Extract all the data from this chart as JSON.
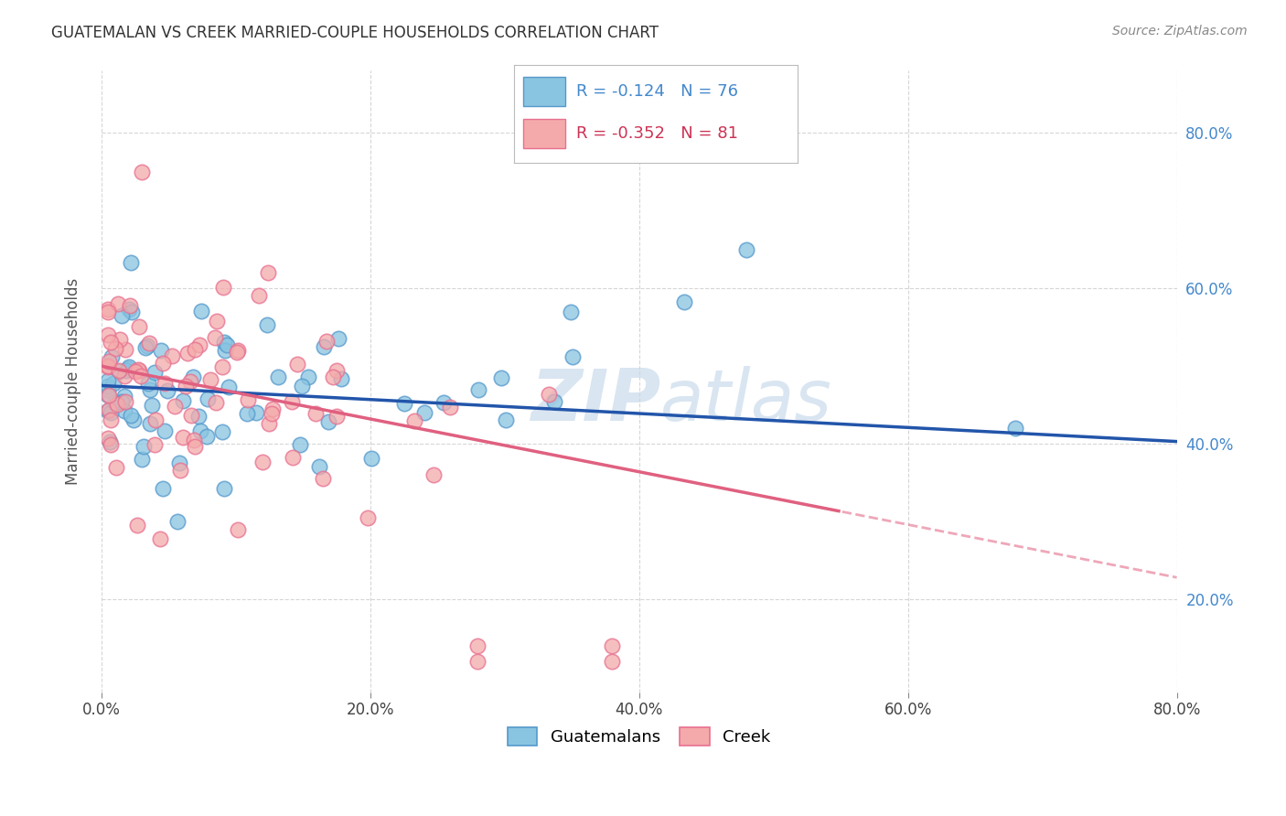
{
  "title": "GUATEMALAN VS CREEK MARRIED-COUPLE HOUSEHOLDS CORRELATION CHART",
  "source": "Source: ZipAtlas.com",
  "xlim": [
    0.0,
    0.8
  ],
  "ylim": [
    0.08,
    0.88
  ],
  "ylabel": "Married-couple Households",
  "blue_R": "-0.124",
  "blue_N": "76",
  "pink_R": "-0.352",
  "pink_N": "81",
  "blue_color": "#89c4e1",
  "pink_color": "#f4aaaa",
  "blue_edge": "#5599cc",
  "pink_edge": "#e87090",
  "blue_line_color": "#2255aa",
  "pink_line_color": "#e06080",
  "watermark_color": "#c5d8ea",
  "ytick_color": "#4488cc",
  "xtick_color": "#444444",
  "grid_color": "#cccccc",
  "title_color": "#333333",
  "source_color": "#888888"
}
